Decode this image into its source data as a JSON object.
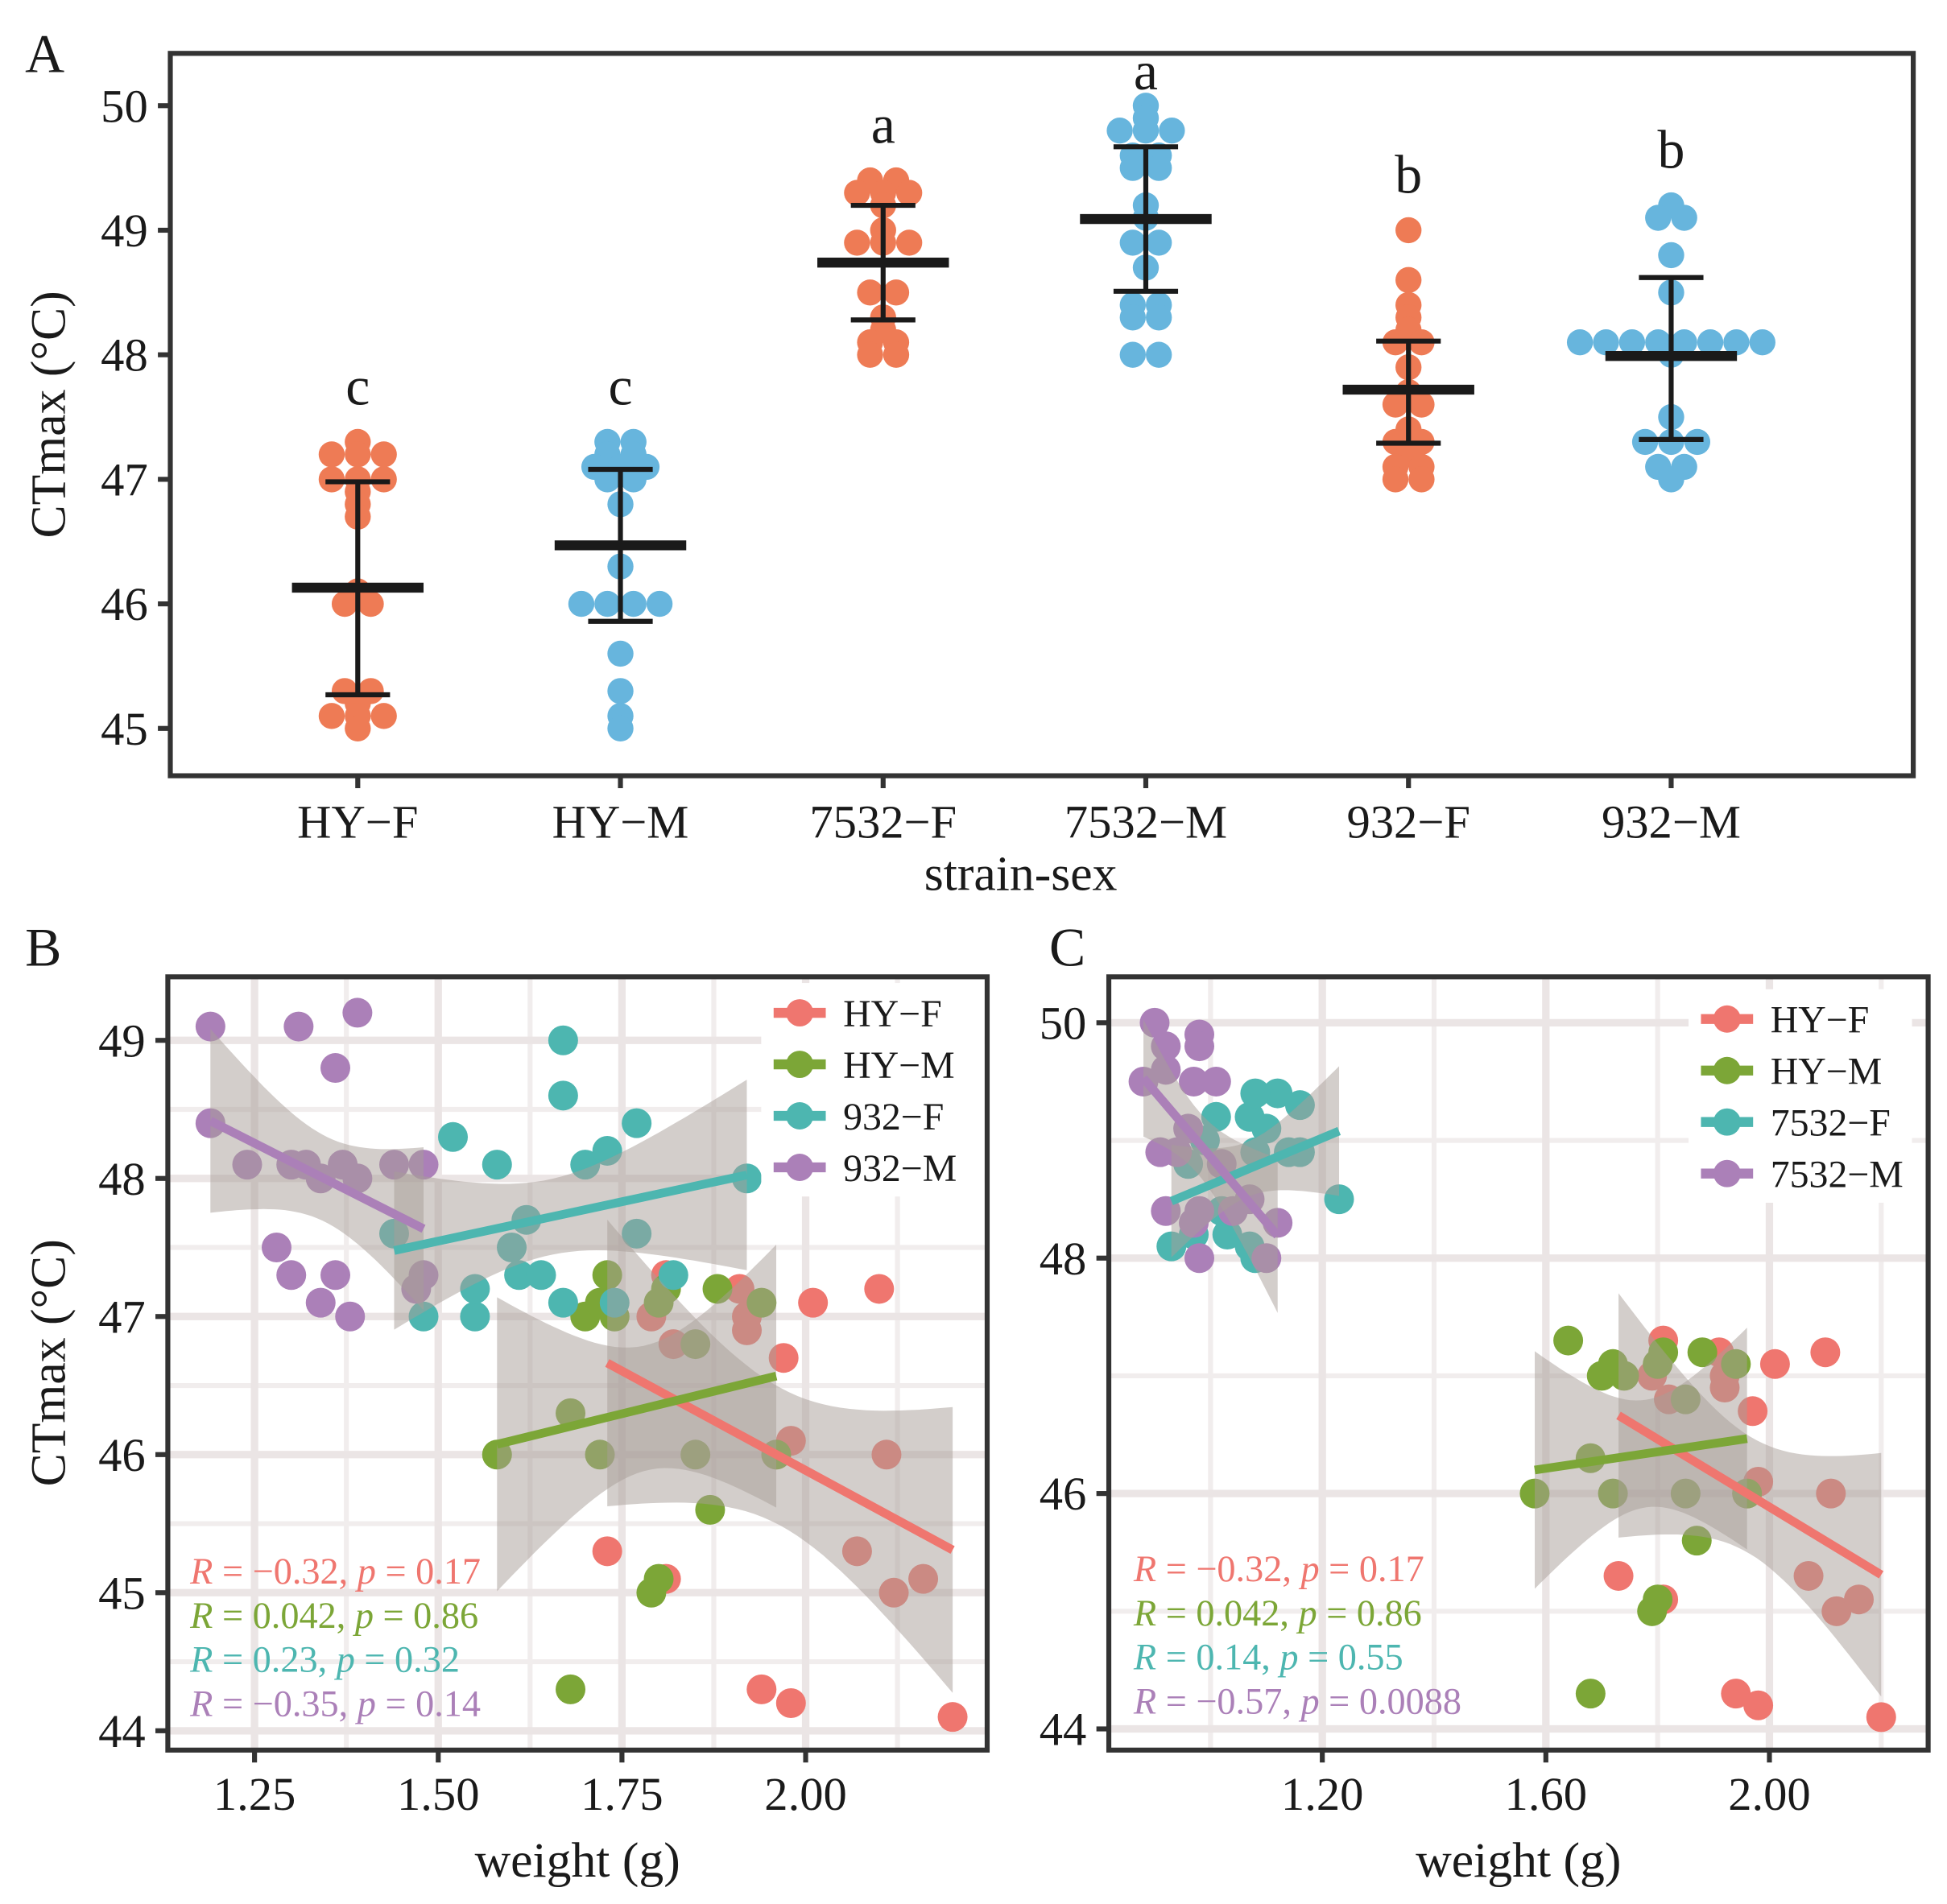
{
  "panel_labels": [
    "A",
    "B",
    "C"
  ],
  "chart_data": [
    {
      "panel": "A",
      "type": "scatter",
      "subtype": "dot-strip with mean and SD error bars",
      "xlabel": "strain-sex",
      "ylabel": "CTmax (°C)",
      "ylim": [
        44.62,
        50.42
      ],
      "yticks": [
        "45",
        "46",
        "47",
        "48",
        "49",
        "50"
      ],
      "grid": false,
      "categories": [
        "HY−F",
        "HY−M",
        "7532−F",
        "7532−M",
        "932−F",
        "932−M"
      ],
      "groups": [
        {
          "name": "HY−F",
          "color": "#EE7B55",
          "letter": "c",
          "mean": 46.13,
          "sd_low": 45.27,
          "sd_high": 46.98,
          "values": [
            47.3,
            47.2,
            47.2,
            47.2,
            47.0,
            47.0,
            47.0,
            46.9,
            46.8,
            46.7,
            46.1,
            46.0,
            46.0,
            45.3,
            45.3,
            45.2,
            45.1,
            45.1,
            45.1,
            45.0
          ]
        },
        {
          "name": "HY−M",
          "color": "#67B5DD",
          "letter": "c",
          "mean": 46.47,
          "sd_low": 45.86,
          "sd_high": 47.08,
          "values": [
            47.3,
            47.3,
            47.2,
            47.2,
            47.1,
            47.1,
            47.1,
            47.0,
            47.0,
            46.8,
            46.3,
            46.0,
            46.0,
            46.0,
            46.0,
            45.6,
            45.3,
            45.1,
            45.0
          ]
        },
        {
          "name": "7532−F",
          "color": "#EE7B55",
          "letter": "a",
          "mean": 48.74,
          "sd_low": 48.28,
          "sd_high": 49.2,
          "values": [
            49.4,
            49.4,
            49.3,
            49.3,
            49.3,
            49.2,
            49.0,
            48.9,
            48.9,
            48.9,
            48.5,
            48.5,
            48.3,
            48.2,
            48.1,
            48.1,
            48.0,
            48.0
          ]
        },
        {
          "name": "7532−M",
          "color": "#67B5DD",
          "letter": "a",
          "mean": 49.09,
          "sd_low": 48.51,
          "sd_high": 49.67,
          "values": [
            50.0,
            49.9,
            49.8,
            49.8,
            49.8,
            49.6,
            49.6,
            49.5,
            49.5,
            49.2,
            49.1,
            48.9,
            48.9,
            48.7,
            48.4,
            48.4,
            48.3,
            48.3,
            48.0,
            48.0
          ]
        },
        {
          "name": "932−F",
          "color": "#EE7B55",
          "letter": "b",
          "mean": 47.72,
          "sd_low": 47.29,
          "sd_high": 48.11,
          "values": [
            49.0,
            48.6,
            48.4,
            48.3,
            48.2,
            48.1,
            48.1,
            47.9,
            47.7,
            47.6,
            47.6,
            47.4,
            47.3,
            47.3,
            47.2,
            47.1,
            47.1,
            47.0,
            47.0
          ]
        },
        {
          "name": "932−M",
          "color": "#67B5DD",
          "letter": "b",
          "mean": 47.99,
          "sd_low": 47.32,
          "sd_high": 48.62,
          "values": [
            49.2,
            49.1,
            49.1,
            48.8,
            48.5,
            48.1,
            48.1,
            48.1,
            48.1,
            48.1,
            48.1,
            48.1,
            48.1,
            48.0,
            47.5,
            47.3,
            47.3,
            47.3,
            47.1,
            47.1,
            47.0
          ]
        }
      ]
    },
    {
      "panel": "B",
      "type": "scatter",
      "subtype": "scatter with linear fit and 95% CI",
      "xlabel": "weight (g)",
      "ylabel": "CTmax (°C)",
      "xlim": [
        1.132,
        2.247
      ],
      "ylim": [
        43.86,
        49.46
      ],
      "xticks": [
        "1.25",
        "1.50",
        "1.75",
        "2.00"
      ],
      "xminor": [
        1.125,
        1.375,
        1.625,
        1.875,
        2.125
      ],
      "yticks": [
        "44",
        "45",
        "46",
        "47",
        "48",
        "49"
      ],
      "yminor": [
        44.5,
        45.5,
        46.5,
        47.5,
        48.5
      ],
      "grid": true,
      "legend_position": "top-right",
      "series": [
        {
          "name": "HY−F",
          "color": "#EF766F",
          "annotation": "R = −0.32, p = 0.17",
          "points": [
            [
              1.91,
              47.2
            ],
            [
              2.1,
              47.2
            ],
            [
              2.01,
              47.1
            ],
            [
              1.92,
              47.0
            ],
            [
              1.92,
              46.9
            ],
            [
              1.97,
              46.7
            ],
            [
              1.82,
              46.8
            ],
            [
              1.79,
              47.0
            ],
            [
              1.98,
              46.1
            ],
            [
              2.11,
              46.0
            ],
            [
              2.07,
              45.3
            ],
            [
              2.12,
              45.0
            ],
            [
              2.16,
              45.1
            ],
            [
              1.73,
              45.3
            ],
            [
              1.81,
              45.1
            ],
            [
              1.94,
              44.3
            ],
            [
              1.98,
              44.2
            ],
            [
              2.2,
              44.1
            ],
            [
              1.81,
              47.3
            ],
            [
              1.96,
              46.0
            ]
          ]
        },
        {
          "name": "HY−M",
          "color": "#7CA637",
          "annotation": "R = 0.042, p = 0.86",
          "points": [
            [
              1.58,
              46.0
            ],
            [
              1.68,
              46.3
            ],
            [
              1.72,
              46.0
            ],
            [
              1.85,
              46.0
            ],
            [
              1.87,
              45.6
            ],
            [
              1.68,
              44.3
            ],
            [
              1.79,
              45.0
            ],
            [
              1.8,
              45.1
            ],
            [
              1.7,
              47.0
            ],
            [
              1.73,
              47.3
            ],
            [
              1.74,
              47.0
            ],
            [
              1.8,
              47.1
            ],
            [
              1.81,
              47.2
            ],
            [
              1.88,
              47.2
            ],
            [
              1.94,
              47.1
            ],
            [
              1.85,
              46.8
            ],
            [
              1.96,
              46.0
            ],
            [
              1.72,
              47.1
            ]
          ]
        },
        {
          "name": "932−F",
          "color": "#4DB6B0",
          "annotation": "R = 0.23, p = 0.32",
          "points": [
            [
              1.67,
              49.0
            ],
            [
              1.67,
              48.6
            ],
            [
              1.7,
              48.1
            ],
            [
              1.73,
              48.2
            ],
            [
              1.77,
              48.4
            ],
            [
              1.52,
              48.3
            ],
            [
              1.58,
              48.1
            ],
            [
              1.92,
              48.0
            ],
            [
              1.44,
              47.6
            ],
            [
              1.62,
              47.7
            ],
            [
              1.77,
              47.6
            ],
            [
              1.6,
              47.5
            ],
            [
              1.48,
              47.0
            ],
            [
              1.55,
              47.0
            ],
            [
              1.55,
              47.2
            ],
            [
              1.61,
              47.3
            ],
            [
              1.64,
              47.3
            ],
            [
              1.67,
              47.1
            ],
            [
              1.74,
              47.1
            ],
            [
              1.82,
              47.3
            ]
          ]
        },
        {
          "name": "932−M",
          "color": "#AB80B8",
          "annotation": "R = −0.35, p = 0.14",
          "points": [
            [
              1.19,
              49.1
            ],
            [
              1.31,
              49.1
            ],
            [
              1.39,
              49.2
            ],
            [
              1.36,
              48.8
            ],
            [
              1.19,
              48.4
            ],
            [
              1.24,
              48.1
            ],
            [
              1.3,
              48.1
            ],
            [
              1.32,
              48.1
            ],
            [
              1.37,
              48.1
            ],
            [
              1.34,
              48.0
            ],
            [
              1.39,
              48.0
            ],
            [
              1.44,
              48.1
            ],
            [
              1.48,
              48.1
            ],
            [
              1.28,
              47.5
            ],
            [
              1.3,
              47.3
            ],
            [
              1.36,
              47.3
            ],
            [
              1.34,
              47.1
            ],
            [
              1.38,
              47.0
            ],
            [
              1.48,
              47.3
            ],
            [
              1.47,
              47.2
            ]
          ]
        }
      ]
    },
    {
      "panel": "C",
      "type": "scatter",
      "subtype": "scatter with linear fit and 95% CI",
      "xlabel": "weight (g)",
      "ylabel": "",
      "xlim": [
        0.818,
        2.284
      ],
      "ylim": [
        43.82,
        50.39
      ],
      "xticks": [
        "1.20",
        "1.60",
        "2.00"
      ],
      "xminor": [
        1.0,
        1.4,
        1.8,
        2.2
      ],
      "yticks": [
        "44",
        "46",
        "48",
        "50"
      ],
      "yminor": [
        45,
        47,
        49
      ],
      "grid": true,
      "legend_position": "top-right",
      "series": [
        {
          "name": "HY−F",
          "color": "#EF766F",
          "annotation": "R = −0.32, p = 0.17",
          "points": [
            [
              1.91,
              47.2
            ],
            [
              2.1,
              47.2
            ],
            [
              2.01,
              47.1
            ],
            [
              1.92,
              47.0
            ],
            [
              1.92,
              46.9
            ],
            [
              1.97,
              46.7
            ],
            [
              1.82,
              46.8
            ],
            [
              1.79,
              47.0
            ],
            [
              1.98,
              46.1
            ],
            [
              2.11,
              46.0
            ],
            [
              2.07,
              45.3
            ],
            [
              2.12,
              45.0
            ],
            [
              2.16,
              45.1
            ],
            [
              1.73,
              45.3
            ],
            [
              1.81,
              45.1
            ],
            [
              1.94,
              44.3
            ],
            [
              1.98,
              44.2
            ],
            [
              2.2,
              44.1
            ],
            [
              1.81,
              47.3
            ],
            [
              1.96,
              46.0
            ]
          ]
        },
        {
          "name": "HY−M",
          "color": "#7CA637",
          "annotation": "R = 0.042, p = 0.86",
          "points": [
            [
              1.58,
              46.0
            ],
            [
              1.68,
              46.3
            ],
            [
              1.72,
              46.0
            ],
            [
              1.85,
              46.0
            ],
            [
              1.87,
              45.6
            ],
            [
              1.68,
              44.3
            ],
            [
              1.79,
              45.0
            ],
            [
              1.8,
              45.1
            ],
            [
              1.7,
              47.0
            ],
            [
              1.64,
              47.3
            ],
            [
              1.74,
              47.0
            ],
            [
              1.8,
              47.1
            ],
            [
              1.81,
              47.2
            ],
            [
              1.88,
              47.2
            ],
            [
              1.94,
              47.1
            ],
            [
              1.85,
              46.8
            ],
            [
              1.96,
              46.0
            ],
            [
              1.72,
              47.1
            ]
          ]
        },
        {
          "name": "7532−F",
          "color": "#4DB6B0",
          "annotation": "R = 0.14, p = 0.55",
          "points": [
            [
              0.93,
              48.1
            ],
            [
              1.16,
              49.3
            ],
            [
              1.23,
              48.5
            ],
            [
              1.08,
              48.0
            ],
            [
              1.07,
              49.2
            ],
            [
              1.12,
              49.4
            ],
            [
              1.01,
              49.2
            ],
            [
              1.08,
              49.4
            ],
            [
              1.14,
              48.9
            ],
            [
              0.99,
              49.0
            ],
            [
              0.97,
              48.2
            ],
            [
              1.03,
              48.2
            ],
            [
              1.08,
              48.9
            ],
            [
              0.96,
              48.8
            ],
            [
              1.1,
              49.1
            ],
            [
              1.16,
              48.9
            ],
            [
              1.02,
              48.4
            ],
            [
              1.07,
              48.1
            ]
          ]
        },
        {
          "name": "7532−M",
          "color": "#AB80B8",
          "annotation": "R = −0.57, p = 0.0088",
          "points": [
            [
              0.9,
              50.0
            ],
            [
              0.92,
              49.8
            ],
            [
              0.98,
              49.9
            ],
            [
              0.98,
              49.8
            ],
            [
              0.88,
              49.5
            ],
            [
              0.97,
              49.5
            ],
            [
              1.01,
              49.5
            ],
            [
              0.92,
              49.6
            ],
            [
              0.96,
              49.1
            ],
            [
              0.91,
              48.9
            ],
            [
              0.94,
              48.9
            ],
            [
              1.02,
              48.8
            ],
            [
              0.92,
              48.4
            ],
            [
              0.98,
              48.4
            ],
            [
              1.04,
              48.4
            ],
            [
              1.12,
              48.3
            ],
            [
              0.98,
              48.0
            ],
            [
              1.1,
              48.0
            ],
            [
              1.07,
              48.5
            ],
            [
              0.97,
              48.3
            ]
          ]
        }
      ]
    }
  ]
}
